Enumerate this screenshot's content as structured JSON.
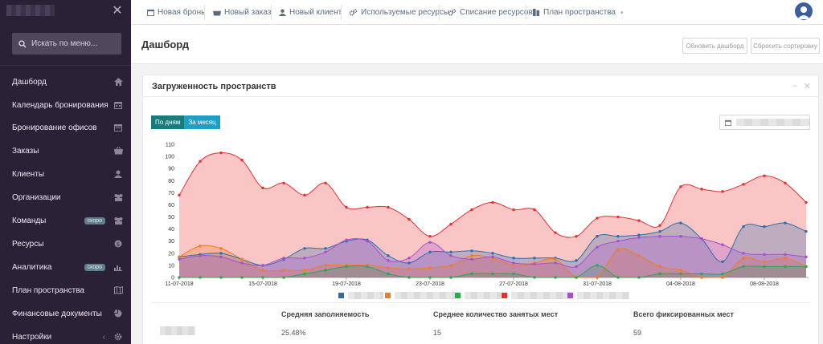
{
  "sidebar": {
    "search_placeholder": "Искать по меню...",
    "items": [
      {
        "label": "Дашборд",
        "icon": "home-icon"
      },
      {
        "label": "Календарь бронирования",
        "icon": "calendar-icon"
      },
      {
        "label": "Бронирование офисов",
        "icon": "office-icon"
      },
      {
        "label": "Заказы",
        "icon": "basket-icon"
      },
      {
        "label": "Клиенты",
        "icon": "user-tie-icon"
      },
      {
        "label": "Организации",
        "icon": "building-icon"
      },
      {
        "label": "Команды",
        "icon": "team-icon",
        "badge": "скоро"
      },
      {
        "label": "Ресурсы",
        "icon": "dollar-icon"
      },
      {
        "label": "Аналитика",
        "icon": "bar-chart-icon",
        "badge": "скоро"
      },
      {
        "label": "План пространства",
        "icon": "map-icon"
      },
      {
        "label": "Финансовые документы",
        "icon": "pie-icon"
      },
      {
        "label": "Настройки",
        "icon": "cog-icon"
      }
    ]
  },
  "topbar": {
    "links": [
      {
        "label": "Новая бронь",
        "icon": "calendar-icon"
      },
      {
        "label": "Новый заказ",
        "icon": "basket-icon"
      },
      {
        "label": "Новый клиент",
        "icon": "user-icon"
      },
      {
        "label": "Используемые ресурсы",
        "icon": "cogs-icon"
      },
      {
        "label": "Списание ресурсов",
        "icon": "cogs-icon"
      },
      {
        "label": "План пространства",
        "icon": "map-icon"
      }
    ]
  },
  "page": {
    "title": "Дашборд",
    "refresh_btn": "Обновить дашборд",
    "reset_btn": "Сбросить сортировку"
  },
  "panel": {
    "title": "Загруженность пространств",
    "toggle": [
      "По дням",
      "За месяц"
    ]
  },
  "stats": {
    "headers": [
      "Средняя заполняемость",
      "Среднее количество занятых мест",
      "Всего фиксированных мест"
    ],
    "values": [
      "25.48%",
      "15",
      "59"
    ]
  },
  "colors": {
    "sidebar_bg": "#2a2136",
    "red": "#e8302f",
    "blue": "#2a6eb0",
    "orange": "#f07c24",
    "green": "#2aa84a",
    "purple": "#a64fd0"
  },
  "chart_data": {
    "type": "area",
    "ylim": [
      0,
      110
    ],
    "yticks": [
      0,
      10,
      20,
      30,
      40,
      50,
      60,
      70,
      80,
      90,
      100,
      110
    ],
    "x_labels": [
      "11-07-2018",
      "15-07-2018",
      "19-07-2018",
      "23-07-2018",
      "27-07-2018",
      "31-07-2018",
      "04-08-2018",
      "08-08-2018"
    ],
    "x_label_positions": [
      0,
      4,
      8,
      12,
      16,
      20,
      24,
      28
    ],
    "series": [
      {
        "color": "#e8302f",
        "values": [
          68,
          96,
          103,
          97,
          74,
          78,
          68,
          78,
          58,
          58,
          58,
          48,
          34,
          44,
          56,
          62,
          56,
          56,
          37,
          34,
          49,
          50,
          47,
          43,
          75,
          73,
          71,
          77,
          84,
          78,
          62
        ]
      },
      {
        "color": "#2a6eb0",
        "values": [
          17,
          19,
          20,
          15,
          10,
          15,
          24,
          24,
          30,
          31,
          18,
          12,
          21,
          21,
          22,
          20,
          16,
          16,
          16,
          14,
          34,
          34,
          35,
          38,
          45,
          32,
          13,
          42,
          42,
          45,
          38
        ]
      },
      {
        "color": "#f07c24",
        "values": [
          17,
          26,
          24,
          15,
          6,
          6,
          6,
          10,
          10,
          10,
          8,
          7,
          8,
          10,
          18,
          16,
          10,
          12,
          15,
          0,
          0,
          23,
          18,
          9,
          6,
          0,
          0,
          16,
          13,
          16,
          9
        ]
      },
      {
        "color": "#2aa84a",
        "values": [
          0,
          0,
          0,
          0,
          0,
          0,
          3,
          6,
          9,
          9,
          3,
          0,
          0,
          0,
          3,
          3,
          3,
          0,
          0,
          0,
          10,
          0,
          0,
          3,
          3,
          3,
          3,
          9,
          9,
          9,
          9
        ]
      },
      {
        "color": "#a64fd0",
        "values": [
          15,
          18,
          17,
          12,
          10,
          16,
          16,
          21,
          31,
          30,
          14,
          16,
          29,
          18,
          15,
          17,
          12,
          11,
          12,
          9,
          25,
          30,
          33,
          34,
          34,
          32,
          27,
          20,
          19,
          19,
          17
        ]
      }
    ]
  }
}
